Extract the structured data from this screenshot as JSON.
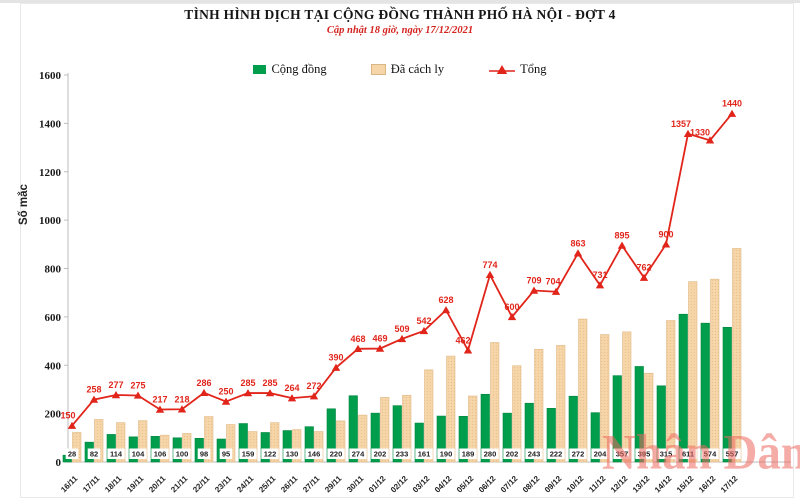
{
  "header": {
    "title": "TÌNH HÌNH DỊCH TẠI CỘNG ĐỒNG THÀNH PHỐ HÀ NỘI - ĐỢT 4",
    "subtitle": "Cập nhật 18 giờ, ngày 17/12/2021"
  },
  "watermark": {
    "text": "Nhân Dân",
    "color": "#ed6a60"
  },
  "chart_data": {
    "type": "bar",
    "title": "TÌNH HÌNH DỊCH TẠI CỘNG ĐỒNG THÀNH PHỐ HÀ NỘI - ĐỢT 4",
    "subtitle": "Cập nhật 18 giờ, ngày 17/12/2021",
    "xlabel": "",
    "ylabel": "Số mắc",
    "ylim": [
      0,
      1600
    ],
    "yticks": [
      0,
      200,
      400,
      600,
      800,
      1000,
      1200,
      1400,
      1600
    ],
    "grid": false,
    "legend_position": "top",
    "categories": [
      "16/11",
      "17/11",
      "18/11",
      "19/11",
      "20/11",
      "21/11",
      "22/11",
      "23/11",
      "24/11",
      "25/11",
      "26/11",
      "27/11",
      "29/11",
      "30/11",
      "01/12",
      "02/12",
      "03/12",
      "04/12",
      "05/12",
      "06/12",
      "07/12",
      "08/12",
      "09/12",
      "10/12",
      "11/12",
      "12/12",
      "13/12",
      "14/12",
      "15/12",
      "16/12",
      "17/12"
    ],
    "series": [
      {
        "name": "Cộng đồng",
        "type": "bar",
        "color": "#009d4c",
        "labels_shown": true,
        "values": [
          28,
          82,
          114,
          104,
          106,
          100,
          98,
          95,
          159,
          122,
          130,
          146,
          220,
          274,
          202,
          233,
          161,
          190,
          189,
          280,
          202,
          243,
          222,
          272,
          204,
          357,
          395,
          315,
          611,
          574,
          557
        ]
      },
      {
        "name": "Đã cách ly",
        "type": "bar",
        "color": "#f6d5a9",
        "labels_shown": false,
        "estimated": true,
        "values": [
          122,
          176,
          163,
          171,
          111,
          118,
          188,
          155,
          126,
          163,
          134,
          126,
          170,
          194,
          267,
          276,
          381,
          438,
          273,
          494,
          398,
          466,
          482,
          591,
          527,
          538,
          367,
          585,
          746,
          756,
          883
        ]
      },
      {
        "name": "Tổng",
        "type": "line",
        "color": "#e1251b",
        "marker": "triangle",
        "labels_shown": true,
        "values": [
          150,
          258,
          277,
          275,
          217,
          218,
          286,
          250,
          285,
          285,
          264,
          272,
          390,
          468,
          469,
          509,
          542,
          628,
          462,
          774,
          600,
          709,
          704,
          863,
          731,
          895,
          762,
          900,
          1357,
          1330,
          1440
        ]
      }
    ]
  }
}
